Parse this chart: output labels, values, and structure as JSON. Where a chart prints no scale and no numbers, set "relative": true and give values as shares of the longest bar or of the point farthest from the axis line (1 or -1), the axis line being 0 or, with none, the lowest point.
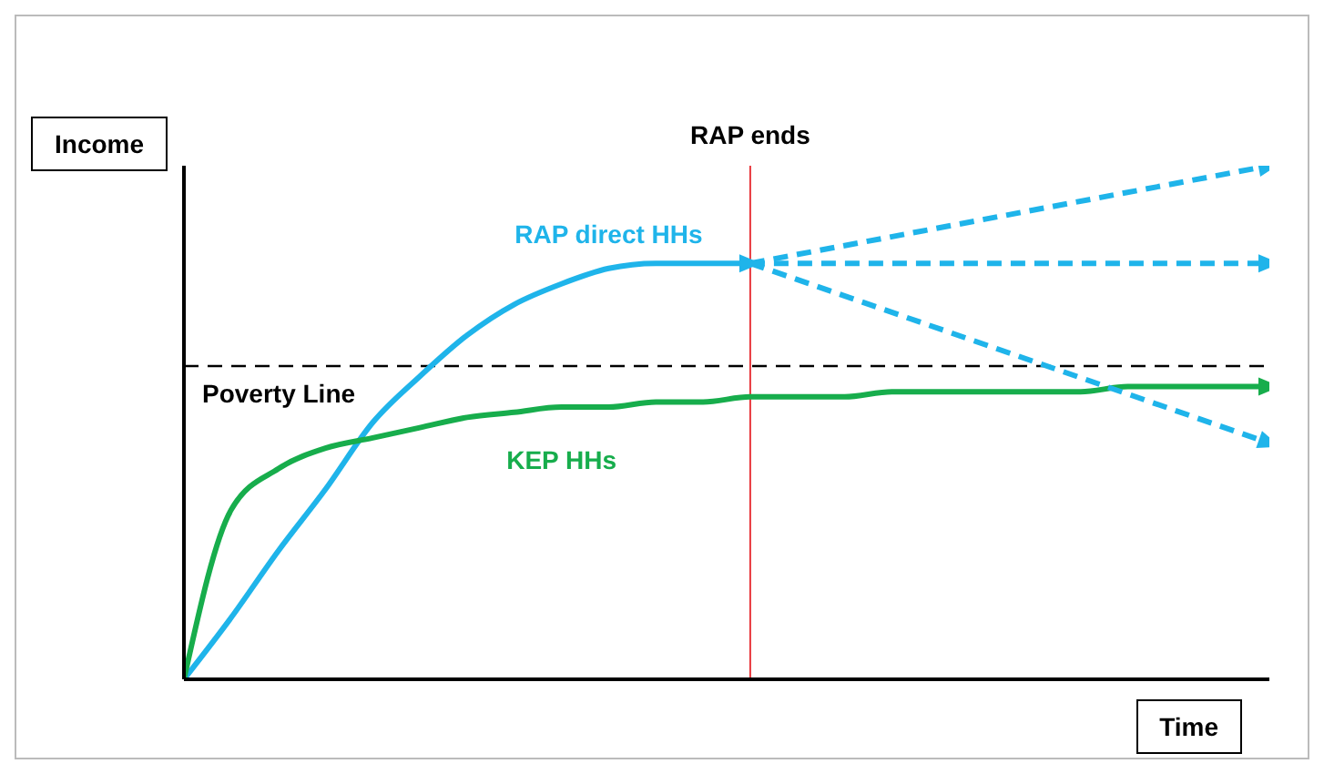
{
  "chart_data": {
    "type": "line",
    "relative": true,
    "xlabel": "Time",
    "ylabel": "Income",
    "grid": false,
    "legend": false,
    "annotations": [
      "RAP ends"
    ],
    "categories": [
      null,
      null,
      null,
      null,
      null,
      null,
      null,
      null,
      null,
      null,
      null,
      null,
      null,
      null,
      null,
      null,
      null,
      null,
      null,
      null,
      null,
      null,
      null,
      null
    ],
    "series": [
      {
        "name": "RAP direct HHs",
        "color": "#1fb4ea",
        "line_style": "solid",
        "values": [
          0,
          0.12,
          0.25,
          0.37,
          0.5,
          0.59,
          0.67,
          0.73,
          0.77,
          0.8,
          0.81,
          0.81,
          0.81,
          null,
          null,
          null,
          null,
          null,
          null,
          null,
          null,
          null,
          null,
          null
        ]
      },
      {
        "name": "KEP HHs",
        "color": "#17ad4c",
        "line_style": "solid",
        "values": [
          0,
          0.33,
          0.41,
          0.45,
          0.47,
          0.49,
          0.51,
          0.52,
          0.53,
          0.53,
          0.54,
          0.54,
          0.55,
          0.55,
          0.55,
          0.56,
          0.56,
          0.56,
          0.56,
          0.56,
          0.57,
          0.57,
          0.57,
          0.57
        ]
      },
      {
        "color": "#1fb4ea",
        "line_style": "dashed",
        "values": [
          null,
          null,
          null,
          null,
          null,
          null,
          null,
          null,
          null,
          null,
          null,
          null,
          0.81,
          null,
          null,
          null,
          null,
          null,
          null,
          null,
          null,
          null,
          null,
          1
        ]
      },
      {
        "color": "#1fb4ea",
        "line_style": "dashed",
        "values": [
          null,
          null,
          null,
          null,
          null,
          null,
          null,
          null,
          null,
          null,
          null,
          null,
          0.81,
          null,
          null,
          null,
          null,
          null,
          null,
          null,
          null,
          null,
          null,
          0.81
        ]
      },
      {
        "color": "#1fb4ea",
        "line_style": "dashed",
        "values": [
          null,
          null,
          null,
          null,
          null,
          null,
          null,
          null,
          null,
          null,
          null,
          null,
          0.81,
          null,
          null,
          null,
          null,
          null,
          null,
          null,
          null,
          null,
          null,
          0.46
        ]
      }
    ],
    "ref_lines": [
      {
        "axis": "y",
        "value": 0.61,
        "label": "Poverty Line",
        "color": "#000000",
        "line_style": "dashed"
      }
    ]
  }
}
